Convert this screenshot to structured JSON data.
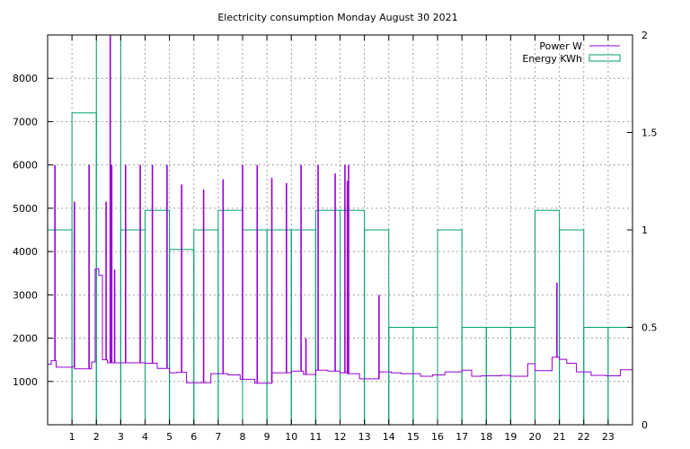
{
  "chart_data": {
    "type": "line",
    "title": "Electricity consumption Monday August 30 2021",
    "xlabel": "",
    "ylabel": "",
    "xlim": [
      0,
      24
    ],
    "ylim": [
      0,
      9000
    ],
    "y2lim": [
      0,
      2
    ],
    "x_ticks": [
      1,
      2,
      3,
      4,
      5,
      6,
      7,
      8,
      9,
      10,
      11,
      12,
      13,
      14,
      15,
      16,
      17,
      18,
      19,
      20,
      21,
      22,
      23
    ],
    "x_tick_labels": [
      "1",
      "2",
      "3",
      "4",
      "5",
      "6",
      "7",
      "8",
      "9",
      "10",
      "11",
      "12",
      "13",
      "14",
      "15",
      "16",
      "17",
      "18",
      "19",
      "20",
      "21",
      "22",
      "23"
    ],
    "y_ticks": [
      1000,
      2000,
      3000,
      4000,
      5000,
      6000,
      7000,
      8000
    ],
    "y_tick_labels": [
      "1000",
      "2000",
      "3000",
      "4000",
      "5000",
      "6000",
      "7000",
      "8000"
    ],
    "y2_ticks": [
      0,
      0.5,
      1,
      1.5,
      2
    ],
    "y2_tick_labels": [
      "0",
      "0.5",
      "1",
      "1.5",
      "2"
    ],
    "grid": true,
    "legend_position": "top-right",
    "colors": {
      "power": "#9400d3",
      "energy": "#009e73"
    },
    "series": [
      {
        "name": "Power W",
        "axis": "left",
        "style": "line",
        "baseline_segments": [
          [
            0.0,
            0.15,
            1400
          ],
          [
            0.15,
            0.35,
            1480
          ],
          [
            0.35,
            1.0,
            1330
          ],
          [
            1.0,
            1.1,
            1340
          ],
          [
            1.1,
            1.8,
            1290
          ],
          [
            1.8,
            1.95,
            1450
          ],
          [
            1.95,
            2.1,
            3600
          ],
          [
            2.1,
            2.25,
            3450
          ],
          [
            2.25,
            2.45,
            1500
          ],
          [
            2.45,
            2.75,
            1430
          ],
          [
            2.75,
            4.0,
            1430
          ],
          [
            4.0,
            4.5,
            1420
          ],
          [
            4.5,
            5.0,
            1300
          ],
          [
            5.0,
            5.3,
            1200
          ],
          [
            5.3,
            5.7,
            1210
          ],
          [
            5.7,
            6.7,
            970
          ],
          [
            6.7,
            7.4,
            1180
          ],
          [
            7.4,
            7.9,
            1150
          ],
          [
            7.9,
            8.5,
            1050
          ],
          [
            8.5,
            9.2,
            960
          ],
          [
            9.2,
            10.0,
            1200
          ],
          [
            10.0,
            10.5,
            1240
          ],
          [
            10.5,
            11.0,
            1160
          ],
          [
            11.0,
            11.5,
            1260
          ],
          [
            11.5,
            12.0,
            1240
          ],
          [
            12.0,
            12.3,
            1200
          ],
          [
            12.3,
            12.8,
            1180
          ],
          [
            12.8,
            13.6,
            1060
          ],
          [
            13.6,
            14.1,
            1220
          ],
          [
            14.1,
            14.5,
            1200
          ],
          [
            14.5,
            15.3,
            1180
          ],
          [
            15.3,
            15.8,
            1120
          ],
          [
            15.8,
            16.3,
            1150
          ],
          [
            16.3,
            17.0,
            1220
          ],
          [
            17.0,
            17.4,
            1260
          ],
          [
            17.4,
            17.8,
            1120
          ],
          [
            17.8,
            18.6,
            1130
          ],
          [
            18.6,
            19.0,
            1140
          ],
          [
            19.0,
            19.7,
            1120
          ],
          [
            19.7,
            20.0,
            1410
          ],
          [
            20.0,
            20.7,
            1250
          ],
          [
            20.7,
            21.0,
            1560
          ],
          [
            21.0,
            21.3,
            1510
          ],
          [
            21.3,
            21.7,
            1420
          ],
          [
            21.7,
            22.3,
            1220
          ],
          [
            22.3,
            22.9,
            1140
          ],
          [
            22.9,
            23.5,
            1130
          ],
          [
            23.5,
            24.0,
            1270
          ]
        ],
        "spikes": [
          [
            0.3,
            6000
          ],
          [
            1.1,
            5150
          ],
          [
            1.7,
            6000
          ],
          [
            2.4,
            5150
          ],
          [
            2.57,
            9000
          ],
          [
            2.63,
            6000
          ],
          [
            2.75,
            3580
          ],
          [
            3.2,
            6000
          ],
          [
            3.8,
            6000
          ],
          [
            4.3,
            6000
          ],
          [
            4.9,
            6000
          ],
          [
            5.5,
            5550
          ],
          [
            6.4,
            5430
          ],
          [
            7.2,
            5670
          ],
          [
            8.0,
            6000
          ],
          [
            8.6,
            6000
          ],
          [
            9.2,
            5700
          ],
          [
            9.8,
            5580
          ],
          [
            10.4,
            6000
          ],
          [
            10.6,
            2000
          ],
          [
            11.1,
            6000
          ],
          [
            11.8,
            5800
          ],
          [
            12.2,
            6000
          ],
          [
            12.3,
            5630
          ],
          [
            12.35,
            6000
          ],
          [
            13.6,
            3000
          ],
          [
            20.9,
            3280
          ]
        ]
      },
      {
        "name": "Energy KWh",
        "axis": "right",
        "style": "steps",
        "hourly_values": [
          1.0,
          1.6,
          2.0,
          1.0,
          1.1,
          0.9,
          1.0,
          1.1,
          1.0,
          1.0,
          1.0,
          1.1,
          1.1,
          1.0,
          0.5,
          0.5,
          1.0,
          0.5,
          0.5,
          0.5,
          1.1,
          1.0,
          0.5,
          0.5
        ]
      }
    ]
  }
}
